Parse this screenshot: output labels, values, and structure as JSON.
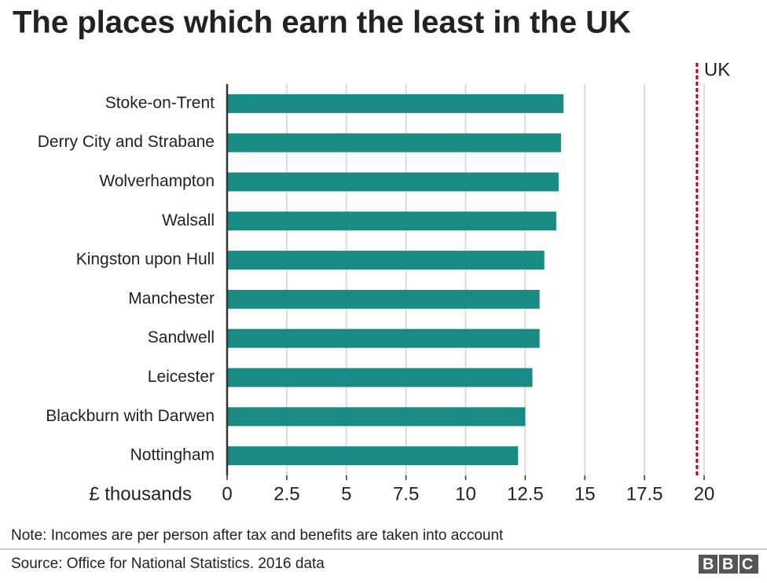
{
  "chart_data": {
    "type": "barh",
    "title": "The places which earn the least in the UK",
    "categories": [
      "Stoke-on-Trent",
      "Derry City and Strabane",
      "Wolverhampton",
      "Walsall",
      "Kingston upon Hull",
      "Manchester",
      "Sandwell",
      "Leicester",
      "Blackburn with Darwen",
      "Nottingham"
    ],
    "values": [
      14.1,
      14.0,
      13.9,
      13.8,
      13.3,
      13.1,
      13.1,
      12.8,
      12.5,
      12.2
    ],
    "color": "#1a8a84",
    "xlabel": "£ thousands",
    "xlim": [
      0,
      20
    ],
    "xticks": [
      0,
      2.5,
      5,
      7.5,
      10,
      12.5,
      15,
      17.5,
      20
    ],
    "grid": true,
    "reference": {
      "label": "UK",
      "value": 19.7,
      "color": "#c00000"
    },
    "note": "Note: Incomes are per person after tax and benefits are taken into account",
    "source": "Source: Office for National Statistics. 2016 data",
    "logo": "BBC"
  }
}
